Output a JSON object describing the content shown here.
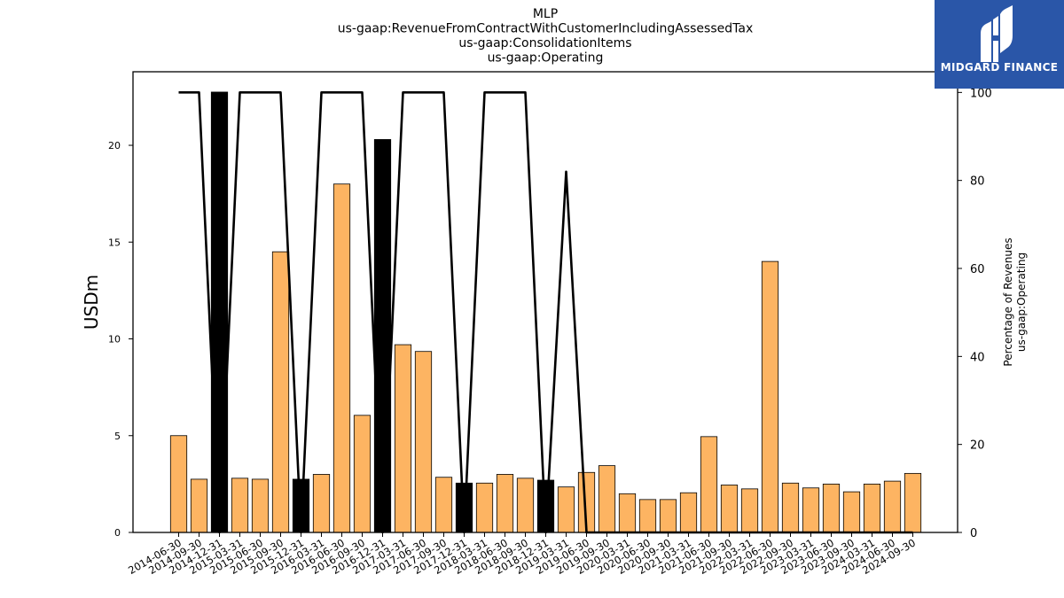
{
  "logo": {
    "text": "MIDGARD FINANCE",
    "background": "#2a56a8"
  },
  "chart_data": {
    "type": "bar",
    "title_lines": [
      "MLP",
      "us-gaap:RevenueFromContractWithCustomerIncludingAssessedTax",
      "us-gaap:ConsolidationItems",
      "us-gaap:Operating"
    ],
    "ylabel": "USDm",
    "y2label_lines": [
      "Percentage of Revenues",
      "us-gaap:Operating"
    ],
    "ylim": [
      0,
      23.8
    ],
    "y2lim": [
      0,
      104.7
    ],
    "yticks": [
      0,
      5,
      10,
      15,
      20
    ],
    "y2ticks": [
      0,
      20,
      40,
      60,
      80,
      100
    ],
    "categories": [
      "2014-06-30",
      "2014-09-30",
      "2014-12-31",
      "2015-03-31",
      "2015-06-30",
      "2015-09-30",
      "2015-12-31",
      "2016-03-31",
      "2016-06-30",
      "2016-09-30",
      "2016-12-31",
      "2017-03-31",
      "2017-06-30",
      "2017-09-30",
      "2017-12-31",
      "2018-03-31",
      "2018-06-30",
      "2018-09-30",
      "2018-12-31",
      "2019-03-31",
      "2019-06-30",
      "2019-09-30",
      "2020-03-31",
      "2020-06-30",
      "2020-09-30",
      "2021-03-31",
      "2021-06-30",
      "2021-09-30",
      "2022-03-31",
      "2022-06-30",
      "2022-09-30",
      "2023-03-31",
      "2023-06-30",
      "2023-09-30",
      "2024-03-31",
      "2024-06-30",
      "2024-09-30"
    ],
    "series": [
      {
        "kind": "bar",
        "values": [
          5.0,
          2.75,
          22.75,
          2.8,
          2.75,
          14.5,
          2.75,
          3.0,
          18.0,
          6.05,
          20.3,
          9.7,
          9.35,
          2.85,
          2.55,
          2.55,
          3.0,
          2.8,
          2.7,
          2.35,
          3.1,
          3.45,
          2.0,
          1.7,
          1.7,
          2.05,
          4.95,
          2.45,
          2.25,
          14.0,
          2.55,
          2.3,
          2.5,
          2.1,
          2.5,
          2.65,
          3.05
        ],
        "highlight": [
          false,
          false,
          true,
          false,
          false,
          false,
          true,
          false,
          false,
          false,
          true,
          false,
          false,
          false,
          true,
          false,
          false,
          false,
          true,
          false,
          false,
          false,
          false,
          false,
          false,
          false,
          false,
          false,
          false,
          false,
          false,
          false,
          false,
          false,
          false,
          false,
          false
        ],
        "color": "#fdb462",
        "highlight_color": "#000000"
      },
      {
        "kind": "line",
        "axis": "right",
        "values": [
          100,
          100,
          0,
          100,
          100,
          100,
          0,
          100,
          100,
          100,
          0,
          100,
          100,
          100,
          0,
          100,
          100,
          100,
          0,
          82,
          0,
          0,
          0,
          0,
          0,
          0,
          0,
          0,
          0,
          0,
          0,
          0,
          0,
          0,
          0,
          0,
          0
        ],
        "color": "#000000"
      }
    ]
  }
}
